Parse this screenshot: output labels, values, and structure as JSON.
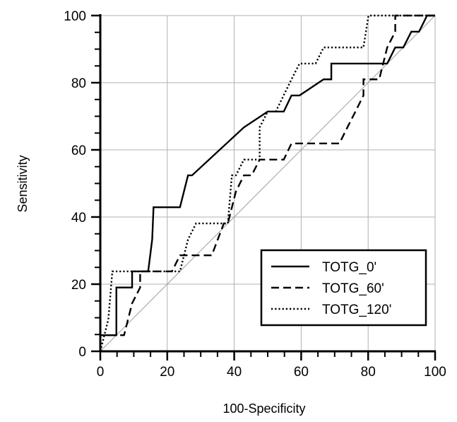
{
  "chart_data": {
    "type": "line",
    "title": "",
    "xlabel": "100-Specificity",
    "ylabel": "Sensitivity",
    "xlim": [
      0,
      100
    ],
    "ylim": [
      0,
      100
    ],
    "xticks": [
      0,
      20,
      40,
      60,
      80,
      100
    ],
    "yticks": [
      0,
      20,
      40,
      60,
      80,
      100
    ],
    "grid": true,
    "legend": "bottom-right",
    "colors": {
      "series": "#000000",
      "grid": "#b0b0b0",
      "diagonal": "#a0a0a0"
    },
    "diagonal": [
      [
        0,
        0
      ],
      [
        100,
        100
      ]
    ],
    "series": [
      {
        "name": "TOTG_0'",
        "style": "solid",
        "points": [
          [
            0,
            0
          ],
          [
            0,
            4.8
          ],
          [
            4.8,
            4.8
          ],
          [
            4.8,
            19
          ],
          [
            9.5,
            19
          ],
          [
            9.5,
            23.8
          ],
          [
            14.3,
            23.8
          ],
          [
            15.5,
            33.3
          ],
          [
            15.9,
            42.9
          ],
          [
            23.8,
            42.9
          ],
          [
            26.2,
            52.4
          ],
          [
            27.4,
            52.4
          ],
          [
            42.9,
            66.7
          ],
          [
            50,
            71.4
          ],
          [
            54.8,
            71.4
          ],
          [
            57.1,
            76.2
          ],
          [
            59.5,
            76.2
          ],
          [
            66.7,
            81
          ],
          [
            69,
            81
          ],
          [
            69,
            85.7
          ],
          [
            85.7,
            85.7
          ],
          [
            88.1,
            90.5
          ],
          [
            90.5,
            90.5
          ],
          [
            92.9,
            95.2
          ],
          [
            95.2,
            95.2
          ],
          [
            97.6,
            100
          ],
          [
            100,
            100
          ]
        ]
      },
      {
        "name": "TOTG_60'",
        "style": "dashed",
        "points": [
          [
            0,
            0
          ],
          [
            0,
            4.8
          ],
          [
            7.1,
            4.8
          ],
          [
            9.5,
            14.3
          ],
          [
            11.9,
            19
          ],
          [
            11.9,
            23.8
          ],
          [
            21.4,
            23.8
          ],
          [
            23.8,
            28.6
          ],
          [
            33.3,
            28.6
          ],
          [
            36.9,
            38.1
          ],
          [
            38.1,
            38.1
          ],
          [
            40.5,
            47.6
          ],
          [
            42.9,
            52.4
          ],
          [
            45.2,
            52.4
          ],
          [
            47.6,
            57.1
          ],
          [
            54.8,
            57.1
          ],
          [
            57.1,
            61.9
          ],
          [
            71.4,
            61.9
          ],
          [
            73.8,
            66.7
          ],
          [
            76.2,
            71.4
          ],
          [
            78.6,
            76.2
          ],
          [
            78.6,
            81
          ],
          [
            83.3,
            81
          ],
          [
            85.7,
            90.5
          ],
          [
            88.1,
            95.2
          ],
          [
            88.1,
            100
          ],
          [
            100,
            100
          ]
        ]
      },
      {
        "name": "TOTG_120'",
        "style": "dotted",
        "points": [
          [
            0,
            0
          ],
          [
            1.2,
            4.8
          ],
          [
            2.4,
            9.5
          ],
          [
            3.6,
            23.8
          ],
          [
            14.3,
            23.8
          ],
          [
            16.7,
            23.8
          ],
          [
            23.8,
            23.8
          ],
          [
            26.2,
            33.3
          ],
          [
            28.6,
            38.1
          ],
          [
            38.1,
            38.1
          ],
          [
            39.3,
            52.4
          ],
          [
            40.5,
            52.4
          ],
          [
            42.9,
            57.1
          ],
          [
            47.6,
            57.1
          ],
          [
            47.6,
            66.7
          ],
          [
            50,
            71.4
          ],
          [
            52.4,
            71.4
          ],
          [
            57.1,
            81
          ],
          [
            59.5,
            85.7
          ],
          [
            64.3,
            85.7
          ],
          [
            66.7,
            90.5
          ],
          [
            78.6,
            90.5
          ],
          [
            80.1,
            100
          ],
          [
            100,
            100
          ]
        ]
      }
    ]
  }
}
